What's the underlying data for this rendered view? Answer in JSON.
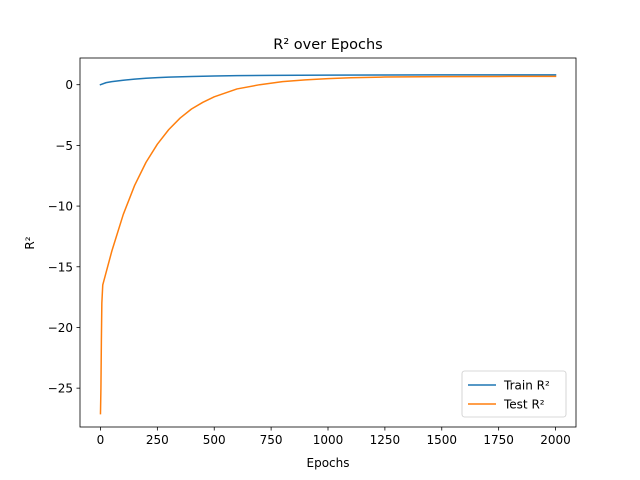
{
  "chart_data": {
    "type": "line",
    "title": "R² over Epochs",
    "xlabel": "Epochs",
    "ylabel": "R²",
    "xlim": [
      -90,
      2090
    ],
    "ylim": [
      -28.2,
      2.2
    ],
    "xticks": [
      0,
      250,
      500,
      750,
      1000,
      1250,
      1500,
      1750,
      2000
    ],
    "yticks": [
      0,
      -5,
      -10,
      -15,
      -20,
      -25
    ],
    "grid": false,
    "legend_position": "lower-right",
    "series": [
      {
        "name": "Train R²",
        "color": "#1f77b4",
        "points": [
          [
            0,
            0.0
          ],
          [
            25,
            0.17
          ],
          [
            50,
            0.25
          ],
          [
            100,
            0.37
          ],
          [
            150,
            0.46
          ],
          [
            200,
            0.53
          ],
          [
            250,
            0.58
          ],
          [
            300,
            0.62
          ],
          [
            400,
            0.68
          ],
          [
            500,
            0.72
          ],
          [
            600,
            0.745
          ],
          [
            750,
            0.77
          ],
          [
            1000,
            0.79
          ],
          [
            1250,
            0.8
          ],
          [
            1500,
            0.805
          ],
          [
            1750,
            0.81
          ],
          [
            2000,
            0.81
          ]
        ]
      },
      {
        "name": "Test R²",
        "color": "#ff7f0e",
        "points": [
          [
            0,
            -27.1
          ],
          [
            2,
            -25.0
          ],
          [
            4,
            -21.0
          ],
          [
            6,
            -18.0
          ],
          [
            10,
            -16.5
          ],
          [
            20,
            -15.8
          ],
          [
            50,
            -13.7
          ],
          [
            100,
            -10.7
          ],
          [
            150,
            -8.3
          ],
          [
            200,
            -6.4
          ],
          [
            250,
            -4.9
          ],
          [
            300,
            -3.7
          ],
          [
            350,
            -2.75
          ],
          [
            400,
            -2.0
          ],
          [
            450,
            -1.45
          ],
          [
            500,
            -1.0
          ],
          [
            600,
            -0.35
          ],
          [
            700,
            0.0
          ],
          [
            800,
            0.25
          ],
          [
            900,
            0.4
          ],
          [
            1000,
            0.5
          ],
          [
            1100,
            0.57
          ],
          [
            1250,
            0.63
          ],
          [
            1500,
            0.67
          ],
          [
            1750,
            0.68
          ],
          [
            2000,
            0.69
          ]
        ]
      }
    ]
  }
}
